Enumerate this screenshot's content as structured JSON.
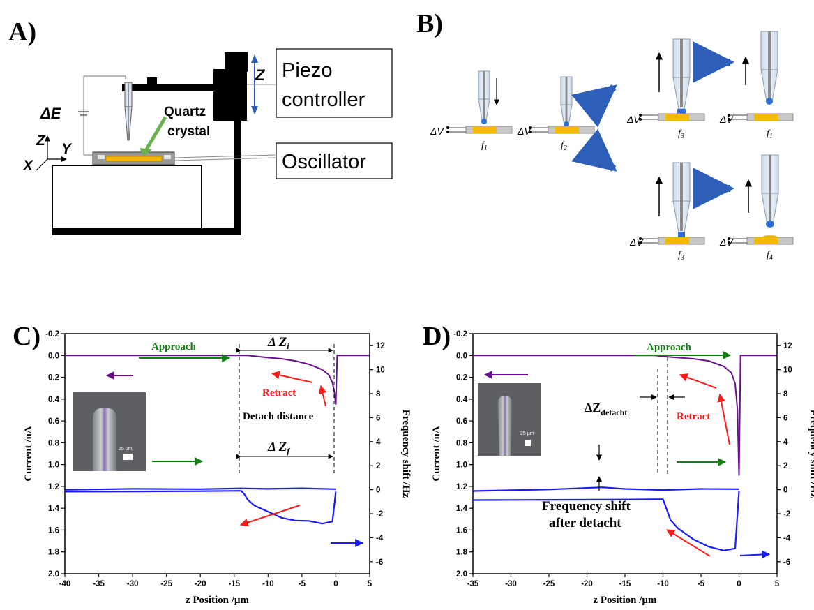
{
  "panels": {
    "a": {
      "label": "A)",
      "z": "Z",
      "piezo_line1": "Piezo",
      "piezo_line2": "controller",
      "oscillator": "Oscillator",
      "delta_e": "ΔE",
      "quartz_line1": "Quartz",
      "quartz_line2": "crystal",
      "axis_z": "Z",
      "axis_y": "Y",
      "axis_x": "X"
    },
    "b": {
      "label": "B)",
      "dv": "ΔV",
      "f1": "f",
      "f1_sub": "1",
      "f2": "f",
      "f2_sub": "2",
      "f3": "f",
      "f3_sub": "3",
      "f4": "f",
      "f4_sub": "4"
    },
    "c": {
      "label": "C)",
      "approach": "Approach",
      "retract": "Retract",
      "dzi": "Δ Z",
      "dzi_sub": "i",
      "dzf": "Δ Z",
      "dzf_sub": "f",
      "detach": "Detach distance",
      "scale": "25 µm"
    },
    "d": {
      "label": "D)",
      "approach": "Approach",
      "retract": "Retract",
      "dz": "ΔZ",
      "dz_sub": "detacht",
      "fs_line1": "Frequency shift",
      "fs_line2": "after detacht",
      "scale": "25 µm"
    }
  },
  "colors": {
    "current": "#6a0f8c",
    "frequency": "#1a1aff",
    "approach_arrow": "#108010",
    "retract_arrow": "#ff1a1a",
    "gold": "#f5b800",
    "tip": "#2e6fd6"
  },
  "chart_data": [
    {
      "type": "line",
      "xlabel": "z Position /µm",
      "ylabel_left": "Current /nA",
      "ylabel_right": "Frequency shift /Hz",
      "xlim": [
        -40,
        5
      ],
      "xticks": [
        -40,
        -35,
        -30,
        -25,
        -20,
        -15,
        -10,
        -5,
        0,
        5
      ],
      "ylim_left": [
        -0.2,
        2.0
      ],
      "ylim_left_reversed": true,
      "yticks_left": [
        "-0.2",
        "0.0",
        "0.2",
        "0.4",
        "0.6",
        "0.8",
        "1.0",
        "1.2",
        "1.4",
        "1.6",
        "1.8",
        "2.0"
      ],
      "ylim_right": [
        -7,
        13
      ],
      "yticks_right": [
        12,
        10,
        8,
        6,
        4,
        2,
        0,
        -2,
        -4,
        -6
      ],
      "series": [
        {
          "axis": "left",
          "x": [
            -40,
            -14,
            -13,
            -10,
            -8,
            -6,
            -4,
            -2,
            -1,
            -0.5,
            -0.2,
            0
          ],
          "y": [
            0.0,
            0.0,
            0.0,
            0.02,
            0.03,
            0.05,
            0.08,
            0.13,
            0.18,
            0.25,
            0.34,
            0.45
          ]
        },
        {
          "axis": "left",
          "x": [
            0,
            0.2,
            2,
            5
          ],
          "y": [
            0.45,
            0.0,
            0.0,
            0.0
          ]
        },
        {
          "axis": "right",
          "x": [
            -40,
            -30,
            -20,
            -14,
            -13.5,
            -13,
            -12,
            -10,
            -8,
            -6,
            -4,
            -2,
            -0.5,
            0
          ],
          "y": [
            -0.1,
            -0.1,
            -0.1,
            -0.1,
            -0.4,
            -0.9,
            -1.4,
            -1.9,
            -2.4,
            -2.6,
            -2.6,
            -2.8,
            -2.6,
            -0.1
          ]
        },
        {
          "axis": "right",
          "x": [
            -40,
            -30,
            -20,
            -14,
            -10,
            -5,
            0
          ],
          "y": [
            0.0,
            0.05,
            0.0,
            0.05,
            0.0,
            0.05,
            0.0
          ]
        }
      ]
    },
    {
      "type": "line",
      "xlabel": "z Position /µm",
      "ylabel_left": "Current /nA",
      "ylabel_right": "Frequency shift /Hz",
      "xlim": [
        -35,
        5
      ],
      "xticks": [
        -35,
        -30,
        -25,
        -20,
        -15,
        -10,
        -5,
        0,
        5
      ],
      "ylim_left": [
        -0.2,
        2.0
      ],
      "ylim_left_reversed": true,
      "yticks_left": [
        "-0.2",
        "0.0",
        "0.2",
        "0.4",
        "0.6",
        "0.8",
        "1.0",
        "1.2",
        "1.4",
        "1.6",
        "1.8",
        "2.0"
      ],
      "ylim_right": [
        -7,
        13
      ],
      "yticks_right": [
        12,
        10,
        8,
        6,
        4,
        2,
        0,
        -2,
        -4,
        -6
      ],
      "series": [
        {
          "axis": "left",
          "x": [
            -35,
            -11,
            -10,
            -8,
            -6,
            -4,
            -2,
            -1,
            -0.5,
            -0.2,
            0
          ],
          "y": [
            0.0,
            0.0,
            0.01,
            0.02,
            0.03,
            0.05,
            0.1,
            0.16,
            0.26,
            0.5,
            1.1
          ]
        },
        {
          "axis": "left",
          "x": [
            0,
            0.2,
            5
          ],
          "y": [
            1.1,
            0.0,
            0.0
          ]
        },
        {
          "axis": "right",
          "x": [
            -35,
            -25,
            -15,
            -10,
            -9.5,
            -9,
            -8,
            -6,
            -4,
            -2,
            -0.5,
            0
          ],
          "y": [
            -0.8,
            -0.8,
            -0.8,
            -0.8,
            -1.7,
            -2.6,
            -3.3,
            -4.2,
            -4.8,
            -5.1,
            -4.9,
            -0.1
          ]
        },
        {
          "axis": "right",
          "x": [
            -35,
            -25,
            -18,
            -15,
            -10,
            -5,
            0
          ],
          "y": [
            -0.1,
            0.0,
            0.15,
            0.0,
            -0.1,
            0.0,
            0.0
          ]
        }
      ]
    }
  ]
}
